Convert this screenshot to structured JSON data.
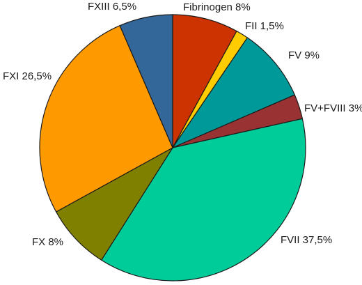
{
  "chart_data": {
    "type": "pie",
    "title": "",
    "start": "12 o'clock",
    "direction": "clockwise",
    "labels_position": "outside",
    "slices": [
      {
        "name": "Fibrinogen",
        "value": 8,
        "label": "Fibrinogen 8%",
        "color": "#CC3300"
      },
      {
        "name": "FII",
        "value": 1.5,
        "label": "FII 1,5%",
        "color": "#FFCC00"
      },
      {
        "name": "FV",
        "value": 9,
        "label": "FV 9%",
        "color": "#009999"
      },
      {
        "name": "FV+FVIII",
        "value": 3,
        "label": "FV+FVIII 3%",
        "color": "#993333"
      },
      {
        "name": "FVII",
        "value": 37.5,
        "label": "FVII 37,5%",
        "color": "#00CC99"
      },
      {
        "name": "FX",
        "value": 8,
        "label": "FX 8%",
        "color": "#808000"
      },
      {
        "name": "FXI",
        "value": 26.5,
        "label": "FXI 26,5%",
        "color": "#FF9900"
      },
      {
        "name": "FXIII",
        "value": 6.5,
        "label": "FXIII 6,5%",
        "color": "#336699"
      }
    ]
  }
}
